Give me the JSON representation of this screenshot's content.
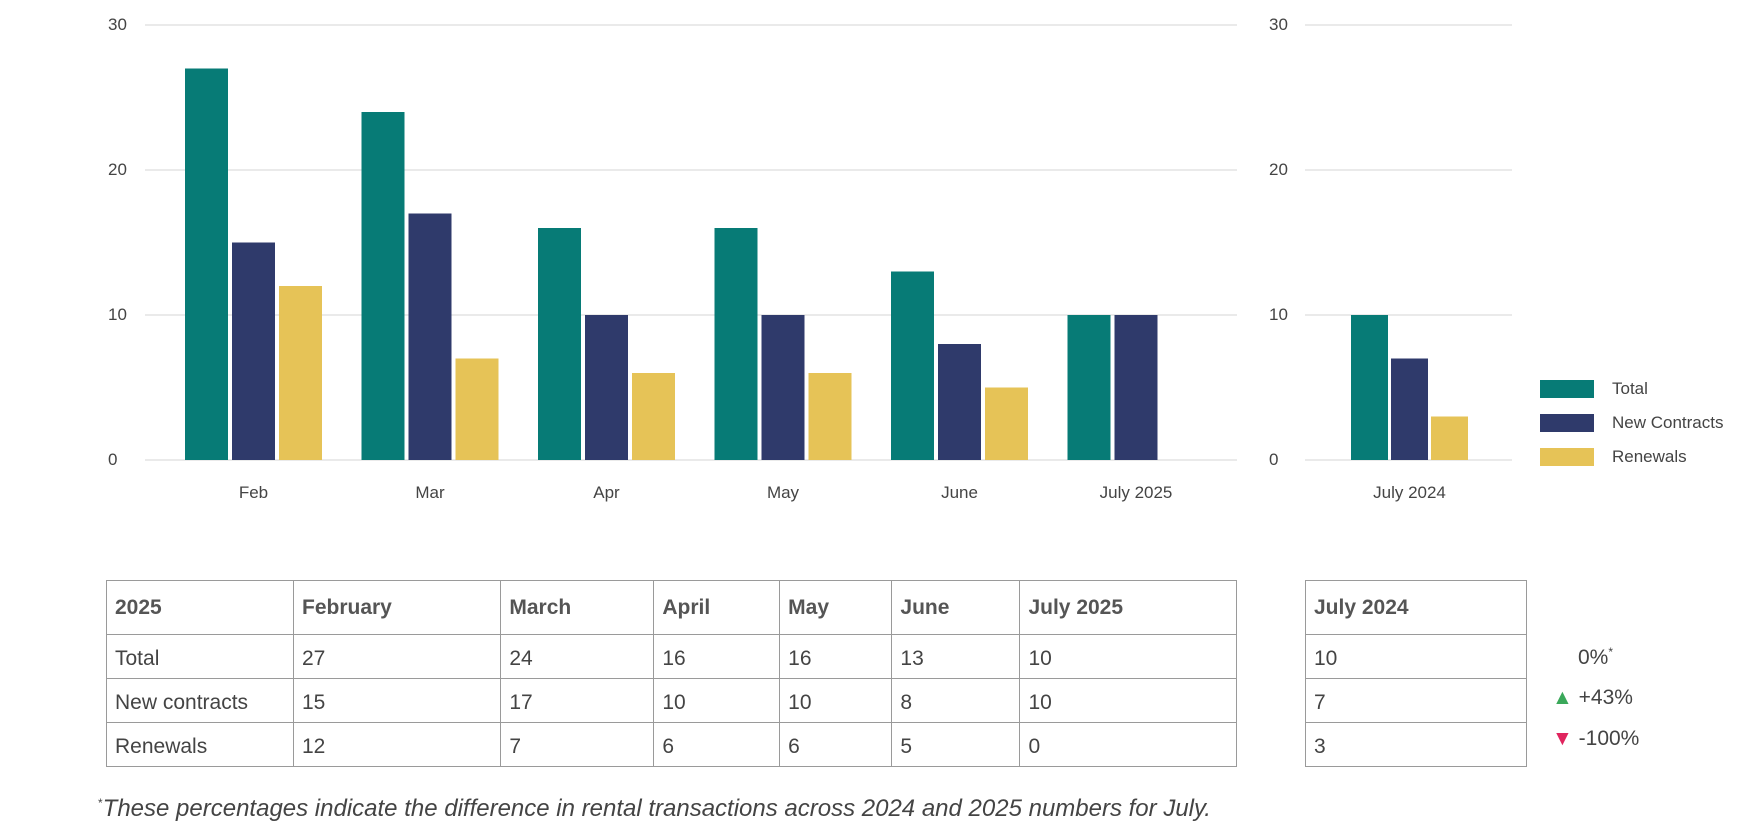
{
  "colors": {
    "total": "#077b76",
    "new_contracts": "#2f3a6b",
    "renewals": "#e6c357",
    "grid": "#e3e3e3",
    "up": "#3aa85a",
    "down": "#e0245e"
  },
  "chart_data": [
    {
      "type": "bar",
      "categories": [
        "Feb",
        "Mar",
        "Apr",
        "May",
        "June",
        "July 2025"
      ],
      "series": [
        {
          "name": "Total",
          "values": [
            27,
            24,
            16,
            16,
            13,
            10
          ]
        },
        {
          "name": "New Contracts",
          "values": [
            15,
            17,
            10,
            10,
            8,
            10
          ]
        },
        {
          "name": "Renewals",
          "values": [
            12,
            7,
            6,
            6,
            5,
            0
          ]
        }
      ],
      "ylim": [
        0,
        30
      ],
      "yticks": [
        0,
        10,
        20,
        30
      ],
      "grid": true
    },
    {
      "type": "bar",
      "categories": [
        "July 2024"
      ],
      "series": [
        {
          "name": "Total",
          "values": [
            10
          ]
        },
        {
          "name": "New Contracts",
          "values": [
            7
          ]
        },
        {
          "name": "Renewals",
          "values": [
            3
          ]
        }
      ],
      "ylim": [
        0,
        30
      ],
      "yticks": [
        0,
        10,
        20,
        30
      ],
      "grid": true,
      "legend_position": "right"
    }
  ],
  "legend": [
    "Total",
    "New Contracts",
    "Renewals"
  ],
  "table_2025": {
    "headers": [
      "2025",
      "February",
      "March",
      "April",
      "May",
      "June",
      "July 2025"
    ],
    "rows": [
      [
        "Total",
        "27",
        "24",
        "16",
        "16",
        "13",
        "10"
      ],
      [
        "New contracts",
        "15",
        "17",
        "10",
        "10",
        "8",
        "10"
      ],
      [
        "Renewals",
        "12",
        "7",
        "6",
        "6",
        "5",
        "0"
      ]
    ]
  },
  "table_2024": {
    "header": "July 2024",
    "rows": [
      "10",
      "7",
      "3"
    ]
  },
  "changes": [
    {
      "text": "0%",
      "note": "*",
      "direction": "none"
    },
    {
      "text": "+43%",
      "direction": "up"
    },
    {
      "text": "-100%",
      "direction": "down"
    }
  ],
  "footnote": {
    "mark": "*",
    "text": "These percentages indicate the difference in rental transactions across 2024 and 2025 numbers for July."
  }
}
